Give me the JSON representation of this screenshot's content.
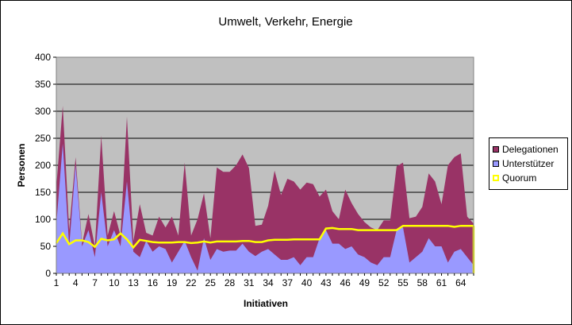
{
  "chart_data": {
    "type": "area",
    "title": "Umwelt, Verkehr, Energie",
    "xlabel": "Initiativen",
    "ylabel": "Personen",
    "ylim": [
      0,
      400
    ],
    "yticks": [
      0,
      50,
      100,
      150,
      200,
      250,
      300,
      350,
      400
    ],
    "x_tick_labels": [
      "1",
      "4",
      "7",
      "10",
      "13",
      "16",
      "19",
      "22",
      "25",
      "28",
      "31",
      "34",
      "37",
      "40",
      "43",
      "46",
      "49",
      "52",
      "55",
      "58",
      "61",
      "64"
    ],
    "grid": true,
    "legend_position": "right",
    "colors": {
      "delegationen": "#993366",
      "unterstuetzer": "#9999ff",
      "quorum": "#ffff00",
      "plot_bg": "#c0c0c0"
    },
    "series": [
      {
        "name": "Delegationen",
        "stacked_total": true,
        "values": [
          160,
          310,
          80,
          215,
          55,
          110,
          50,
          255,
          70,
          115,
          70,
          290,
          60,
          128,
          75,
          70,
          105,
          85,
          105,
          70,
          205,
          70,
          100,
          148,
          65,
          196,
          188,
          188,
          200,
          220,
          195,
          88,
          90,
          125,
          190,
          145,
          175,
          170,
          155,
          168,
          165,
          142,
          155,
          115,
          100,
          155,
          130,
          110,
          95,
          85,
          80,
          98,
          98,
          198,
          205,
          102,
          105,
          123,
          185,
          170,
          128,
          200,
          215,
          222,
          105,
          92
        ]
      },
      {
        "name": "Unterstützer",
        "values": [
          90,
          240,
          50,
          200,
          50,
          80,
          30,
          150,
          50,
          80,
          50,
          170,
          40,
          30,
          60,
          40,
          50,
          45,
          20,
          40,
          60,
          30,
          5,
          65,
          25,
          45,
          40,
          42,
          42,
          55,
          40,
          32,
          40,
          45,
          35,
          25,
          25,
          30,
          15,
          30,
          30,
          65,
          80,
          55,
          55,
          45,
          50,
          35,
          30,
          20,
          15,
          30,
          30,
          80,
          85,
          20,
          30,
          40,
          65,
          50,
          50,
          20,
          40,
          45,
          30,
          15
        ]
      },
      {
        "name": "Quorum",
        "values": [
          56,
          74,
          54,
          61,
          61,
          58,
          49,
          64,
          61,
          63,
          74,
          63,
          48,
          62,
          60,
          58,
          57,
          57,
          57,
          58,
          58,
          56,
          57,
          59,
          57,
          59,
          59,
          59,
          59,
          60,
          60,
          58,
          58,
          61,
          62,
          62,
          62,
          63,
          63,
          63,
          63,
          63,
          83,
          84,
          82,
          82,
          82,
          80,
          80,
          80,
          80,
          80,
          80,
          80,
          88,
          88,
          88,
          88,
          88,
          88,
          88,
          88,
          86,
          88,
          88,
          88
        ]
      }
    ]
  }
}
